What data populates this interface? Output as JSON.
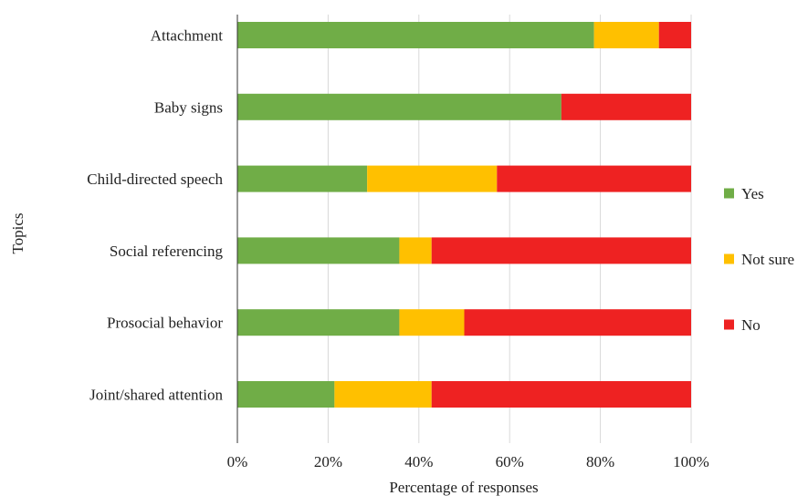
{
  "chart_data": {
    "type": "bar",
    "orientation": "horizontal",
    "stacked": true,
    "normalized": true,
    "title": "",
    "xlabel": "Percentage of responses",
    "ylabel": "Topics",
    "xlim": [
      0,
      1
    ],
    "x_ticks": [
      "0%",
      "20%",
      "40%",
      "60%",
      "80%",
      "100%"
    ],
    "grid": true,
    "legend_position": "right",
    "categories": [
      "Attachment",
      "Baby signs",
      "Child-directed speech",
      "Social referencing",
      "Prosocial behavior",
      "Joint/shared attention"
    ],
    "series": [
      {
        "name": "Yes",
        "color": "#70ad47",
        "values": [
          0.786,
          0.714,
          0.286,
          0.357,
          0.357,
          0.214
        ]
      },
      {
        "name": "Not sure",
        "color": "#ffc000",
        "values": [
          0.143,
          0.0,
          0.286,
          0.071,
          0.143,
          0.214
        ]
      },
      {
        "name": "No",
        "color": "#ee2222",
        "values": [
          0.071,
          0.286,
          0.428,
          0.572,
          0.5,
          0.572
        ]
      }
    ]
  }
}
